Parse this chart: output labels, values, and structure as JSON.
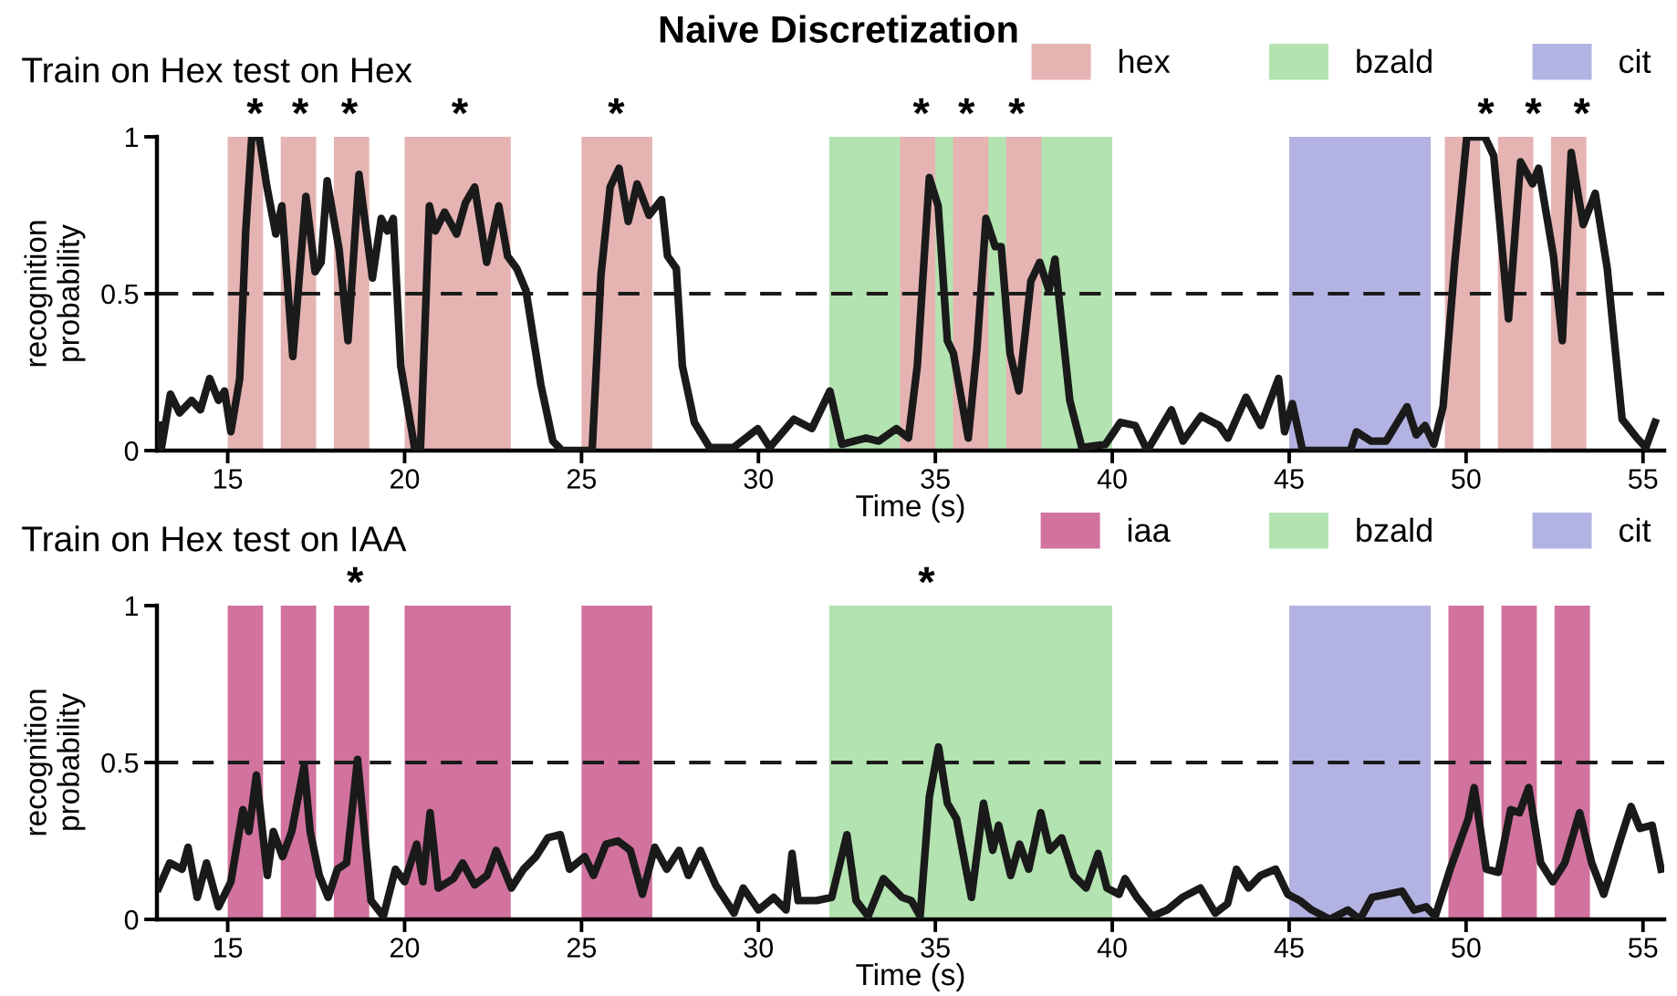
{
  "chart_data": [
    {
      "type": "line",
      "title": "Naive Discretization",
      "subtitle": "Train on Hex test on Hex",
      "xlabel": "Time (s)",
      "ylabel": "recognition\nprobability",
      "xlim": [
        13,
        55.6
      ],
      "xticks": [
        15,
        20,
        25,
        30,
        35,
        40,
        45,
        50,
        55
      ],
      "ylim": [
        0,
        1
      ],
      "yticks": [
        0,
        0.5,
        1
      ],
      "grid": false,
      "legend": "top right",
      "marker": "none",
      "line_style": "solid",
      "series": [
        {
          "color": "#1a1a1a",
          "x": [
            13.05,
            13.13,
            13.38,
            13.64,
            13.98,
            14.23,
            14.49,
            14.74,
            14.91,
            15.09,
            15.34,
            15.51,
            15.68,
            15.89,
            16.11,
            16.36,
            16.53,
            16.84,
            17.21,
            17.47,
            17.64,
            17.81,
            18.15,
            18.4,
            18.71,
            19.09,
            19.34,
            19.51,
            19.68,
            19.89,
            20.28,
            20.45,
            20.7,
            20.87,
            21.13,
            21.47,
            21.72,
            21.98,
            22.32,
            22.66,
            22.91,
            23.17,
            23.43,
            23.85,
            24.19,
            24.45,
            25.3,
            25.55,
            25.81,
            26.06,
            26.32,
            26.57,
            26.91,
            27.26,
            27.43,
            27.68,
            27.85,
            28.19,
            28.62,
            29.3,
            29.98,
            30.32,
            31.0,
            31.51,
            32.02,
            32.36,
            33.04,
            33.4,
            33.9,
            34.24,
            34.49,
            34.83,
            35.08,
            35.34,
            35.51,
            35.93,
            36.18,
            36.43,
            36.69,
            36.86,
            37.11,
            37.36,
            37.7,
            37.95,
            38.21,
            38.38,
            38.8,
            39.14,
            39.81,
            40.23,
            40.65,
            40.99,
            41.67,
            42.0,
            42.51,
            43.02,
            43.27,
            43.78,
            44.2,
            44.7,
            44.87,
            45.09,
            45.38,
            46.73,
            46.9,
            47.32,
            47.74,
            48.33,
            48.59,
            48.84,
            49.09,
            49.35,
            49.68,
            50.02,
            50.53,
            50.78,
            51.2,
            51.54,
            51.88,
            52.05,
            52.47,
            52.72,
            52.97,
            53.31,
            53.65,
            53.99,
            54.41,
            54.83,
            55.08,
            55.34
          ],
          "values": [
            0.08,
            0.01,
            0.18,
            0.12,
            0.16,
            0.13,
            0.23,
            0.16,
            0.19,
            0.06,
            0.23,
            0.7,
            1.0,
            1.0,
            0.84,
            0.69,
            0.78,
            0.3,
            0.81,
            0.57,
            0.6,
            0.86,
            0.64,
            0.35,
            0.88,
            0.55,
            0.74,
            0.7,
            0.74,
            0.27,
            0.01,
            0.01,
            0.78,
            0.7,
            0.76,
            0.69,
            0.79,
            0.84,
            0.6,
            0.78,
            0.62,
            0.58,
            0.51,
            0.21,
            0.03,
            0.0,
            0.0,
            0.56,
            0.84,
            0.9,
            0.73,
            0.85,
            0.75,
            0.8,
            0.62,
            0.58,
            0.27,
            0.09,
            0.01,
            0.01,
            0.07,
            0.01,
            0.1,
            0.07,
            0.19,
            0.02,
            0.04,
            0.03,
            0.07,
            0.04,
            0.27,
            0.87,
            0.78,
            0.35,
            0.31,
            0.04,
            0.33,
            0.74,
            0.65,
            0.65,
            0.31,
            0.19,
            0.54,
            0.6,
            0.51,
            0.61,
            0.16,
            0.01,
            0.02,
            0.09,
            0.08,
            0.0,
            0.13,
            0.03,
            0.11,
            0.08,
            0.04,
            0.17,
            0.08,
            0.23,
            0.06,
            0.15,
            0.0,
            0.0,
            0.06,
            0.03,
            0.03,
            0.14,
            0.05,
            0.08,
            0.02,
            0.14,
            0.6,
            1.0,
            1.0,
            0.94,
            0.42,
            0.92,
            0.85,
            0.9,
            0.62,
            0.35,
            0.95,
            0.72,
            0.82,
            0.58,
            0.1,
            0.04,
            0.01,
            0.09
          ]
        }
      ],
      "ref_lines": [
        {
          "axis": "y",
          "value": 0.5,
          "color": "#1a1a1a",
          "line_style": "dashed"
        }
      ],
      "bands": [
        {
          "axis": "x",
          "from": 15,
          "to": 16,
          "label": "hex",
          "color": "#e6b3b3"
        },
        {
          "axis": "x",
          "from": 16.5,
          "to": 17.5,
          "color": "#e6b3b3"
        },
        {
          "axis": "x",
          "from": 18,
          "to": 19,
          "color": "#e6b3b3"
        },
        {
          "axis": "x",
          "from": 20,
          "to": 23,
          "color": "#e6b3b3"
        },
        {
          "axis": "x",
          "from": 25,
          "to": 27,
          "color": "#e6b3b3"
        },
        {
          "axis": "x",
          "from": 32,
          "to": 40,
          "label": "bzald",
          "color": "#b3e3b0"
        },
        {
          "axis": "x",
          "from": 34,
          "to": 35,
          "color": "#e6b3b3"
        },
        {
          "axis": "x",
          "from": 35.5,
          "to": 36.5,
          "color": "#e6b3b3"
        },
        {
          "axis": "x",
          "from": 37,
          "to": 38,
          "color": "#e6b3b3"
        },
        {
          "axis": "x",
          "from": 45,
          "to": 49,
          "label": "cit",
          "color": "#b3b3e3"
        },
        {
          "axis": "x",
          "from": 49.4,
          "to": 50.4,
          "color": "#e6b3b3"
        },
        {
          "axis": "x",
          "from": 50.9,
          "to": 51.9,
          "color": "#e6b3b3"
        },
        {
          "axis": "x",
          "from": 52.4,
          "to": 53.4,
          "color": "#e6b3b3"
        }
      ],
      "annotations": [
        {
          "text": "*",
          "x": 15.77,
          "y": 1
        },
        {
          "text": "*",
          "x": 17.05,
          "y": 1
        },
        {
          "text": "*",
          "x": 18.44,
          "y": 1
        },
        {
          "text": "*",
          "x": 21.56,
          "y": 1
        },
        {
          "text": "*",
          "x": 25.98,
          "y": 1
        },
        {
          "text": "*",
          "x": 34.6,
          "y": 1
        },
        {
          "text": "*",
          "x": 35.88,
          "y": 1
        },
        {
          "text": "*",
          "x": 37.3,
          "y": 1
        },
        {
          "text": "*",
          "x": 50.56,
          "y": 1
        },
        {
          "text": "*",
          "x": 51.9,
          "y": 1
        },
        {
          "text": "*",
          "x": 53.27,
          "y": 1
        }
      ]
    },
    {
      "type": "line",
      "title": "Train on Hex test on IAA",
      "xlabel": "Time (s)",
      "ylabel": "recognition\nprobability",
      "xlim": [
        13,
        55.6
      ],
      "xticks": [
        15,
        20,
        25,
        30,
        35,
        40,
        45,
        50,
        55
      ],
      "ylim": [
        0,
        1
      ],
      "yticks": [
        0,
        0.5,
        1
      ],
      "grid": false,
      "legend": "top right",
      "marker": "none",
      "line_style": "solid",
      "series": [
        {
          "color": "#1a1a1a",
          "x": [
            13.05,
            13.36,
            13.71,
            13.88,
            14.14,
            14.4,
            14.74,
            15.09,
            15.43,
            15.6,
            15.81,
            16.12,
            16.29,
            16.55,
            16.81,
            17.16,
            17.33,
            17.59,
            17.84,
            18.1,
            18.36,
            18.67,
            18.88,
            19.05,
            19.4,
            19.74,
            20.0,
            20.34,
            20.52,
            20.72,
            20.95,
            21.38,
            21.64,
            21.98,
            22.33,
            22.59,
            23.02,
            23.36,
            23.71,
            24.05,
            24.4,
            24.66,
            25.09,
            25.34,
            25.69,
            26.03,
            26.38,
            26.72,
            27.07,
            27.41,
            27.76,
            28.02,
            28.36,
            28.79,
            29.31,
            29.57,
            30.0,
            30.43,
            30.78,
            30.95,
            31.12,
            31.64,
            32.07,
            32.5,
            32.76,
            33.1,
            33.53,
            34.06,
            34.32,
            34.57,
            34.83,
            35.09,
            35.34,
            35.6,
            36.02,
            36.36,
            36.62,
            36.79,
            37.13,
            37.38,
            37.64,
            37.98,
            38.23,
            38.57,
            38.91,
            39.26,
            39.6,
            39.85,
            40.19,
            40.36,
            40.7,
            41.13,
            41.55,
            41.98,
            42.49,
            42.91,
            43.26,
            43.51,
            43.85,
            44.19,
            44.62,
            44.96,
            45.3,
            45.64,
            46.15,
            46.66,
            47.0,
            47.34,
            47.77,
            48.19,
            48.53,
            48.87,
            49.13,
            49.55,
            50.06,
            50.23,
            50.57,
            50.91,
            51.26,
            51.51,
            51.77,
            52.11,
            52.45,
            52.79,
            53.21,
            53.55,
            53.89,
            54.32,
            54.66,
            54.91,
            55.26,
            55.51
          ],
          "values": [
            0.1,
            0.18,
            0.16,
            0.23,
            0.07,
            0.18,
            0.04,
            0.12,
            0.35,
            0.28,
            0.46,
            0.14,
            0.28,
            0.2,
            0.28,
            0.49,
            0.28,
            0.14,
            0.07,
            0.16,
            0.18,
            0.51,
            0.26,
            0.06,
            0.01,
            0.16,
            0.12,
            0.24,
            0.12,
            0.34,
            0.1,
            0.13,
            0.18,
            0.11,
            0.14,
            0.22,
            0.1,
            0.16,
            0.2,
            0.26,
            0.27,
            0.16,
            0.2,
            0.14,
            0.24,
            0.25,
            0.22,
            0.08,
            0.23,
            0.16,
            0.22,
            0.14,
            0.22,
            0.11,
            0.02,
            0.1,
            0.03,
            0.07,
            0.03,
            0.21,
            0.06,
            0.06,
            0.07,
            0.27,
            0.06,
            0.01,
            0.13,
            0.07,
            0.06,
            0.01,
            0.39,
            0.55,
            0.37,
            0.32,
            0.07,
            0.37,
            0.22,
            0.3,
            0.14,
            0.24,
            0.16,
            0.34,
            0.22,
            0.26,
            0.14,
            0.1,
            0.21,
            0.1,
            0.08,
            0.13,
            0.07,
            0.01,
            0.03,
            0.07,
            0.1,
            0.02,
            0.05,
            0.16,
            0.1,
            0.14,
            0.16,
            0.08,
            0.06,
            0.03,
            0.0,
            0.03,
            0.0,
            0.07,
            0.08,
            0.09,
            0.03,
            0.04,
            0.01,
            0.16,
            0.32,
            0.42,
            0.16,
            0.15,
            0.35,
            0.34,
            0.42,
            0.18,
            0.12,
            0.18,
            0.34,
            0.18,
            0.08,
            0.24,
            0.36,
            0.29,
            0.3,
            0.16
          ]
        }
      ],
      "ref_lines": [
        {
          "axis": "y",
          "value": 0.5,
          "color": "#1a1a1a",
          "line_style": "dashed"
        }
      ],
      "bands": [
        {
          "axis": "x",
          "from": 15,
          "to": 16,
          "label": "iaa",
          "color": "#d1739e"
        },
        {
          "axis": "x",
          "from": 16.5,
          "to": 17.5,
          "color": "#d1739e"
        },
        {
          "axis": "x",
          "from": 18,
          "to": 19,
          "color": "#d1739e"
        },
        {
          "axis": "x",
          "from": 20,
          "to": 23,
          "color": "#d1739e"
        },
        {
          "axis": "x",
          "from": 25,
          "to": 27,
          "color": "#d1739e"
        },
        {
          "axis": "x",
          "from": 32,
          "to": 40,
          "label": "bzald",
          "color": "#b3e3b0"
        },
        {
          "axis": "x",
          "from": 45,
          "to": 49,
          "label": "cit",
          "color": "#b3b3e3"
        },
        {
          "axis": "x",
          "from": 49.5,
          "to": 50.5,
          "color": "#d1739e"
        },
        {
          "axis": "x",
          "from": 51,
          "to": 52,
          "color": "#d1739e"
        },
        {
          "axis": "x",
          "from": 52.5,
          "to": 53.5,
          "color": "#d1739e"
        }
      ],
      "annotations": [
        {
          "text": "*",
          "x": 18.6,
          "y": 1
        },
        {
          "text": "*",
          "x": 34.75,
          "y": 1
        }
      ]
    }
  ]
}
